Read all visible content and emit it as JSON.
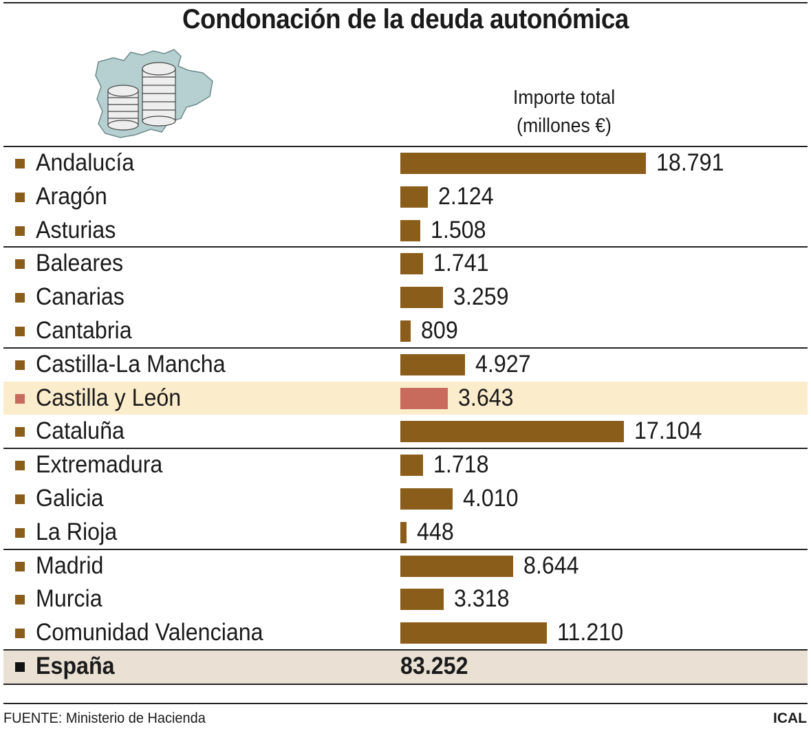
{
  "header": {
    "title": "Condonación de la deuda autonómica",
    "column_label_line1": "Importe total",
    "column_label_line2": "(millones €)"
  },
  "illustration": {
    "icon": "map-with-coin-stacks-icon",
    "map_color": "#b6cfd0",
    "coin_color": "#eeeeee"
  },
  "colors": {
    "bar": "#8a5d1a",
    "highlight_bar": "#c96b5c",
    "highlight_row": "#fbeccc",
    "total_row": "#eae1d4"
  },
  "chart_data": {
    "type": "bar",
    "orientation": "horizontal",
    "title": "Condonación de la deuda autonómica",
    "ylabel": "Importe total (millones €)",
    "categories": [
      "Andalucía",
      "Aragón",
      "Asturias",
      "Baleares",
      "Canarias",
      "Cantabria",
      "Castilla-La Mancha",
      "Castilla y León",
      "Cataluña",
      "Extremadura",
      "Galicia",
      "La Rioja",
      "Madrid",
      "Murcia",
      "Comunidad Valenciana"
    ],
    "values": [
      18791,
      2124,
      1508,
      1741,
      3259,
      809,
      4927,
      3643,
      17104,
      1718,
      4010,
      448,
      8644,
      3318,
      11210
    ],
    "labels": [
      "18.791",
      "2.124",
      "1.508",
      "1.741",
      "3.259",
      "809",
      "4.927",
      "3.643",
      "17.104",
      "1.718",
      "4.010",
      "448",
      "8.644",
      "3.318",
      "11.210"
    ],
    "highlight": "Castilla y León",
    "total": {
      "name": "España",
      "value": 83252,
      "label": "83.252"
    },
    "xlim": [
      0,
      18791
    ]
  },
  "footer": {
    "source": "FUENTE: Ministerio de Hacienda",
    "credit": "ICAL"
  }
}
